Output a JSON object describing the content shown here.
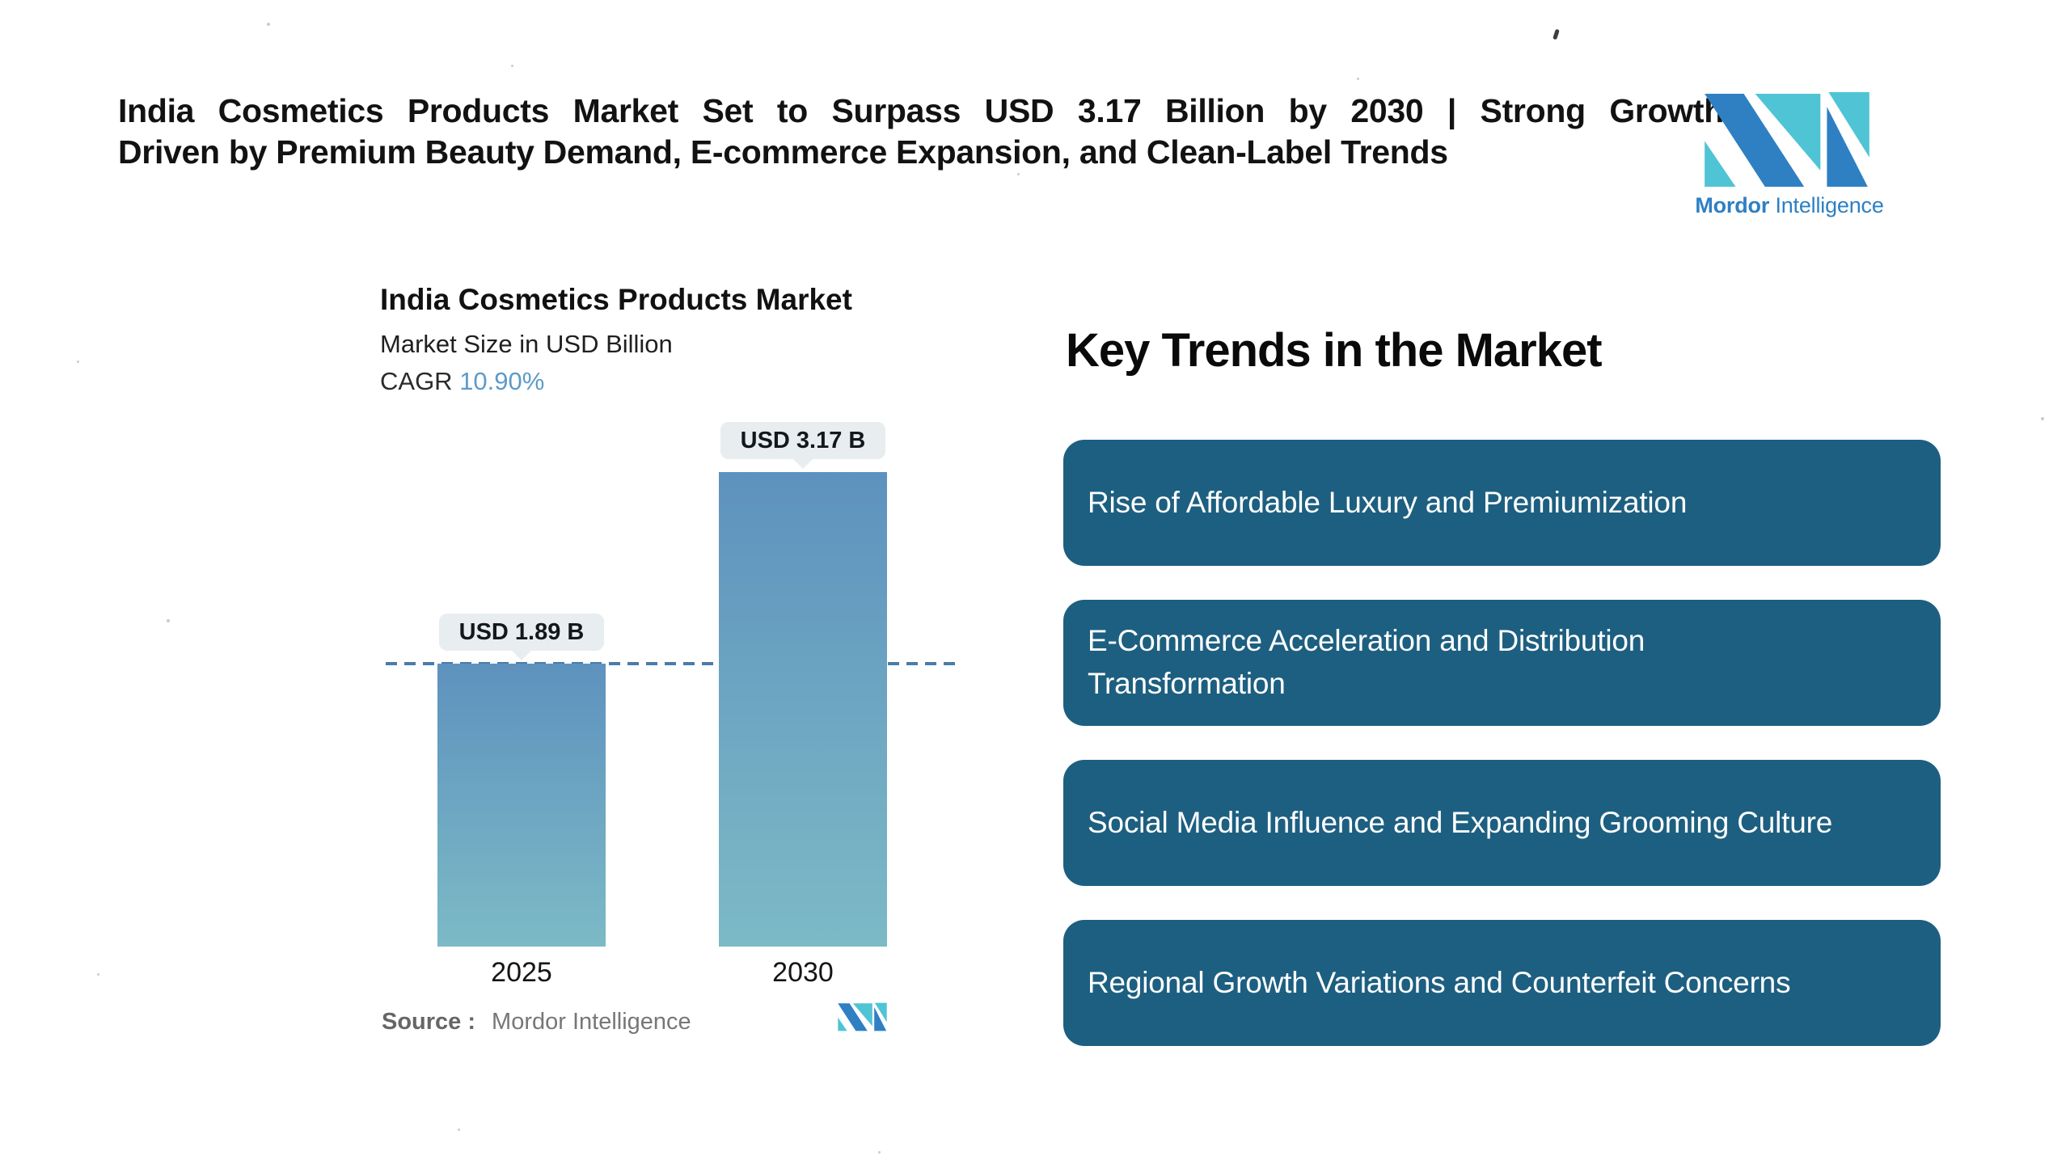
{
  "header": {
    "headline_line1": "India Cosmetics Products Market Set to Surpass USD 3.17 Billion by 2030 | Strong Growth",
    "headline_line2": "Driven by Premium Beauty Demand, E-commerce Expansion, and Clean-Label Trends"
  },
  "brand": {
    "name_bold": "Mordor",
    "name_regular": " Intelligence",
    "blue": "#2E80C3",
    "teal": "#4FC4D5"
  },
  "chart": {
    "title": "India Cosmetics Products Market",
    "subtitle": "Market Size in USD Billion",
    "cagr_label": "CAGR ",
    "cagr_value": "10.90%",
    "cagr_value_color": "#5D9BC8",
    "source_label": "Source :",
    "source_value": "Mordor Intelligence"
  },
  "chart_data": {
    "type": "bar",
    "title": "India Cosmetics Products Market",
    "subtitle": "Market Size in USD Billion",
    "cagr": "10.90%",
    "unit": "USD Billion",
    "categories": [
      "2025",
      "2030"
    ],
    "values": [
      1.89,
      3.17
    ],
    "value_labels": [
      "USD 1.89 B",
      "USD 3.17 B"
    ],
    "ylim": [
      0,
      3.17
    ],
    "reference_line": 1.89,
    "grid": false,
    "legend": false,
    "bar_gradient_top": "#5E92BE",
    "bar_gradient_bottom": "#7CBAC6",
    "reference_line_color": "#4A7CA8",
    "label_pill_bg": "#E8EDF0"
  },
  "trends": {
    "heading": "Key Trends in the Market",
    "box_color": "#1D5F80",
    "items": [
      "Rise of Affordable Luxury and Premiumization",
      "E-Commerce Acceleration and Distribution\nTransformation",
      "Social Media Influence and Expanding Grooming Culture",
      "Regional Growth Variations and Counterfeit Concerns"
    ]
  }
}
